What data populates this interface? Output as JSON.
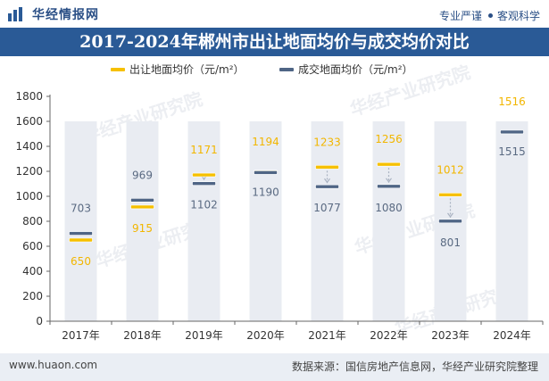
{
  "header": {
    "brand": "华经情报网",
    "slogan_left": "专业严谨",
    "slogan_right": "客观科学"
  },
  "chart_data": {
    "type": "range-marker",
    "title": "2017-2024年郴州市出让地面均价与成交均价对比",
    "categories": [
      "2017年",
      "2018年",
      "2019年",
      "2020年",
      "2021年",
      "2022年",
      "2023年",
      "2024年"
    ],
    "series": [
      {
        "name": "出让地面均价（元/m²）",
        "color": "#f6c000",
        "values": [
          650,
          915,
          1171,
          1194,
          1233,
          1256,
          1012,
          1516
        ]
      },
      {
        "name": "成交地面均价（元/m²）",
        "color": "#4f6585",
        "values": [
          703,
          969,
          1102,
          1190,
          1077,
          1080,
          801,
          1515
        ]
      }
    ],
    "labels": {
      "s1": [
        "650",
        "915",
        "1171",
        "1194",
        "1233",
        "1256",
        "1012",
        "1516"
      ],
      "s2": [
        "703",
        "969",
        "1102",
        "1190",
        "1077",
        "1080",
        "801",
        "1515"
      ]
    },
    "yticks": [
      "0",
      "200",
      "400",
      "600",
      "800",
      "1000",
      "1200",
      "1400",
      "1600",
      "1800"
    ],
    "ylim": [
      0,
      1800
    ],
    "column_top": 1600,
    "colors": {
      "column": "#e9ecf2",
      "axis": "#666666",
      "text": "#333333",
      "watermark": "#c9cfd9"
    },
    "watermark": "华经产业研究院"
  },
  "footer": {
    "site": "www.huaon.com",
    "source": "数据来源：国信房地产信息网，华经产业研究院整理"
  }
}
